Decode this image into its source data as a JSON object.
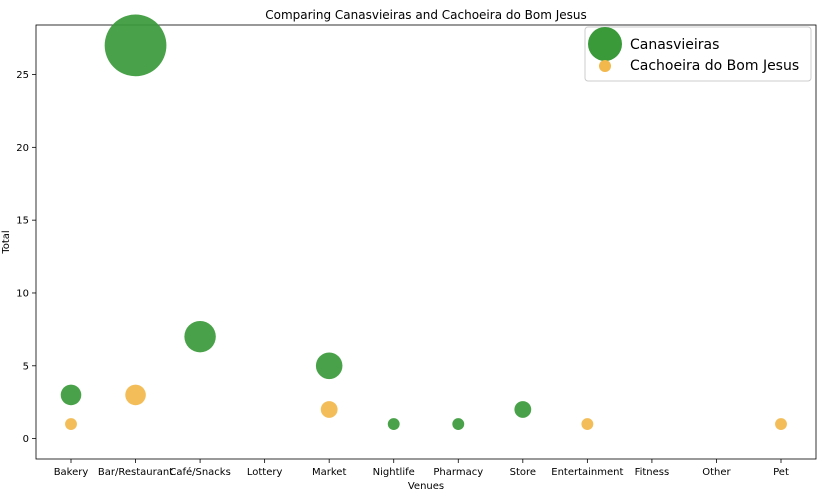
{
  "chart_data": {
    "type": "scatter",
    "title": "Comparing Canasvieiras and Cachoeira do Bom Jesus",
    "xlabel": "Venues",
    "ylabel": "Total",
    "categories": [
      "Bakery",
      "Bar/Restaurant",
      "Café/Snacks",
      "Lottery",
      "Market",
      "Nightlife",
      "Pharmacy",
      "Store",
      "Entertainment",
      "Fitness",
      "Other",
      "Pet"
    ],
    "y_ticks": [
      0,
      5,
      10,
      15,
      20,
      25
    ],
    "ylim": [
      -1.4,
      28.4
    ],
    "grid": false,
    "legend_position": "top-right",
    "series": [
      {
        "name": "Canasvieiras",
        "color": "#3a9a3a",
        "values": [
          3,
          27,
          7,
          null,
          5,
          1,
          1,
          2,
          null,
          null,
          null,
          null
        ]
      },
      {
        "name": "Cachoeira do Bom Jesus",
        "color": "#f2b84b",
        "values": [
          1,
          3,
          null,
          null,
          2,
          null,
          null,
          null,
          1,
          null,
          null,
          1
        ]
      }
    ]
  }
}
